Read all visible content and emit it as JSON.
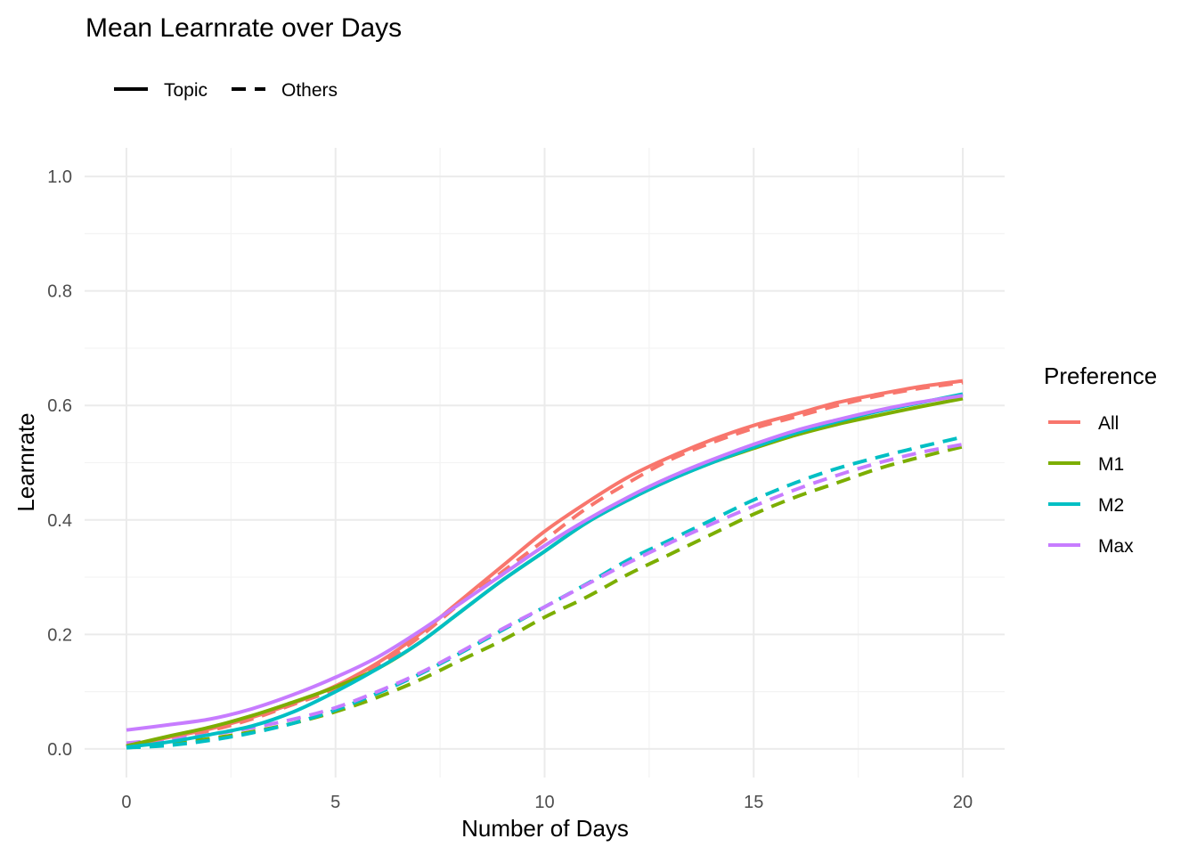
{
  "chart_data": {
    "type": "line",
    "title": "Mean Learnrate over Days",
    "xlabel": "Number of Days",
    "ylabel": "Learnrate",
    "xlim": [
      -1,
      21
    ],
    "ylim": [
      -0.05,
      1.05
    ],
    "x_ticks": [
      0,
      5,
      10,
      15,
      20
    ],
    "x_tick_labels": [
      "0",
      "5",
      "10",
      "15",
      "20"
    ],
    "y_ticks": [
      0.0,
      0.2,
      0.4,
      0.6,
      0.8,
      1.0
    ],
    "y_tick_labels": [
      "0.0",
      "0.2",
      "0.4",
      "0.6",
      "0.8",
      "1.0"
    ],
    "grid": true,
    "linetype_legend": {
      "position": "top-left",
      "entries": [
        {
          "label": "Topic",
          "dash": "solid"
        },
        {
          "label": "Others",
          "dash": "dashed"
        }
      ]
    },
    "color_legend": {
      "title": "Preference",
      "position": "right",
      "entries": [
        {
          "label": "All",
          "color": "#F8766D"
        },
        {
          "label": "M1",
          "color": "#7CAE00"
        },
        {
          "label": "M2",
          "color": "#00BFC4"
        },
        {
          "label": "Max",
          "color": "#C77CFF"
        }
      ]
    },
    "x": [
      0,
      1,
      2,
      3,
      4,
      5,
      6,
      7,
      8,
      9,
      10,
      11,
      12,
      13,
      14,
      15,
      16,
      17,
      18,
      19,
      20
    ],
    "series": [
      {
        "name": "All",
        "linetype": "Topic",
        "color": "#F8766D",
        "values": [
          0.005,
          0.02,
          0.035,
          0.055,
          0.08,
          0.11,
          0.15,
          0.2,
          0.26,
          0.32,
          0.38,
          0.43,
          0.475,
          0.51,
          0.54,
          0.565,
          0.585,
          0.605,
          0.62,
          0.633,
          0.643
        ]
      },
      {
        "name": "All",
        "linetype": "Others",
        "color": "#F8766D",
        "values": [
          0.004,
          0.018,
          0.032,
          0.052,
          0.078,
          0.105,
          0.145,
          0.195,
          0.255,
          0.31,
          0.365,
          0.42,
          0.465,
          0.505,
          0.535,
          0.56,
          0.58,
          0.6,
          0.617,
          0.63,
          0.64
        ]
      },
      {
        "name": "M1",
        "linetype": "Topic",
        "color": "#7CAE00",
        "values": [
          0.005,
          0.022,
          0.038,
          0.058,
          0.082,
          0.108,
          0.14,
          0.185,
          0.24,
          0.295,
          0.345,
          0.395,
          0.435,
          0.47,
          0.5,
          0.525,
          0.548,
          0.567,
          0.583,
          0.598,
          0.612
        ]
      },
      {
        "name": "M1",
        "linetype": "Others",
        "color": "#7CAE00",
        "values": [
          0.004,
          0.01,
          0.018,
          0.03,
          0.045,
          0.065,
          0.09,
          0.12,
          0.155,
          0.19,
          0.23,
          0.265,
          0.305,
          0.34,
          0.375,
          0.41,
          0.44,
          0.465,
          0.49,
          0.51,
          0.528
        ]
      },
      {
        "name": "M2",
        "linetype": "Topic",
        "color": "#00BFC4",
        "values": [
          0.003,
          0.012,
          0.025,
          0.04,
          0.065,
          0.1,
          0.14,
          0.185,
          0.24,
          0.295,
          0.345,
          0.395,
          0.435,
          0.47,
          0.5,
          0.527,
          0.552,
          0.572,
          0.59,
          0.605,
          0.62
        ]
      },
      {
        "name": "M2",
        "linetype": "Others",
        "color": "#00BFC4",
        "values": [
          0.002,
          0.006,
          0.015,
          0.028,
          0.045,
          0.068,
          0.097,
          0.13,
          0.168,
          0.208,
          0.248,
          0.288,
          0.33,
          0.365,
          0.4,
          0.435,
          0.465,
          0.49,
          0.51,
          0.528,
          0.545
        ]
      },
      {
        "name": "Max",
        "linetype": "Topic",
        "color": "#C77CFF",
        "values": [
          0.033,
          0.042,
          0.052,
          0.07,
          0.095,
          0.125,
          0.16,
          0.205,
          0.255,
          0.305,
          0.355,
          0.4,
          0.44,
          0.475,
          0.505,
          0.532,
          0.556,
          0.575,
          0.592,
          0.606,
          0.617
        ]
      },
      {
        "name": "Max",
        "linetype": "Others",
        "color": "#C77CFF",
        "values": [
          0.01,
          0.017,
          0.025,
          0.037,
          0.052,
          0.072,
          0.1,
          0.132,
          0.17,
          0.21,
          0.248,
          0.287,
          0.325,
          0.36,
          0.393,
          0.424,
          0.453,
          0.478,
          0.5,
          0.518,
          0.532
        ]
      }
    ]
  }
}
